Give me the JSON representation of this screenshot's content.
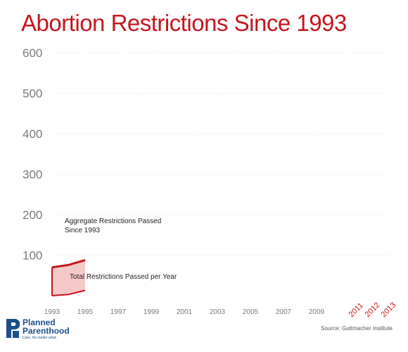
{
  "title": "Abortion Restrictions Since 1993",
  "source": "Source: Guttmacher Institute",
  "logo": {
    "line1": "Planned",
    "line2": "Parenthood",
    "tagline": "Care. No matter what."
  },
  "colors": {
    "accent": "#c4161c",
    "fill": "#f6c9c9",
    "grid": "#e6e6e6",
    "logo": "#1a4f8b"
  },
  "chart_data": {
    "type": "area",
    "title": "Abortion Restrictions Since 1993",
    "xlabel": "",
    "ylabel": "",
    "ylim": [
      0,
      600
    ],
    "yticks": [
      "100",
      "200",
      "300",
      "400",
      "500",
      "600"
    ],
    "xticks": [
      "1993",
      "1995",
      "1997",
      "1999",
      "2001",
      "2003",
      "2005",
      "2007",
      "2009",
      "2011",
      "2012",
      "2013"
    ],
    "highlighted_xticks": [
      "2011",
      "2012",
      "2013"
    ],
    "series": [
      {
        "name": "Total Restrictions Passed per Year",
        "x": [
          "1993",
          "1994",
          "1995"
        ],
        "values": [
          70,
          76,
          88
        ]
      },
      {
        "name": "Aggregate Restrictions Passed Since 1993",
        "x": [
          "1993",
          "1994",
          "1995"
        ],
        "values": [
          0,
          3,
          13
        ]
      }
    ],
    "annotations": [
      {
        "text": "Aggregate Restrictions Passed",
        "ref": "Aggregate Restrictions Passed Since 1993"
      },
      {
        "text": "Since 1993",
        "ref": "Aggregate Restrictions Passed Since 1993"
      },
      {
        "text": "Total Restrictions Passed per Year",
        "ref": "Total Restrictions Passed per Year"
      }
    ],
    "grid": true
  }
}
